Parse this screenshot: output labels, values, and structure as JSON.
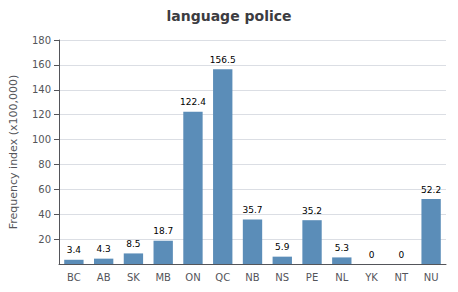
{
  "chart_data": {
    "type": "bar",
    "title": "language police",
    "categories": [
      "BC",
      "AB",
      "SK",
      "MB",
      "ON",
      "QC",
      "NB",
      "NS",
      "PE",
      "NL",
      "YK",
      "NT",
      "NU"
    ],
    "values": [
      3.4,
      4.3,
      8.5,
      18.7,
      122.4,
      156.5,
      35.7,
      5.9,
      35.2,
      5.3,
      0,
      0,
      52.2
    ],
    "color": "#5b8db8",
    "ylabel": "Frequency index (x100,000)",
    "ylim": [
      0,
      180
    ],
    "yticks": [
      20,
      40,
      60,
      80,
      100,
      120,
      140,
      160,
      180
    ],
    "grid": true,
    "data_labels": true
  }
}
